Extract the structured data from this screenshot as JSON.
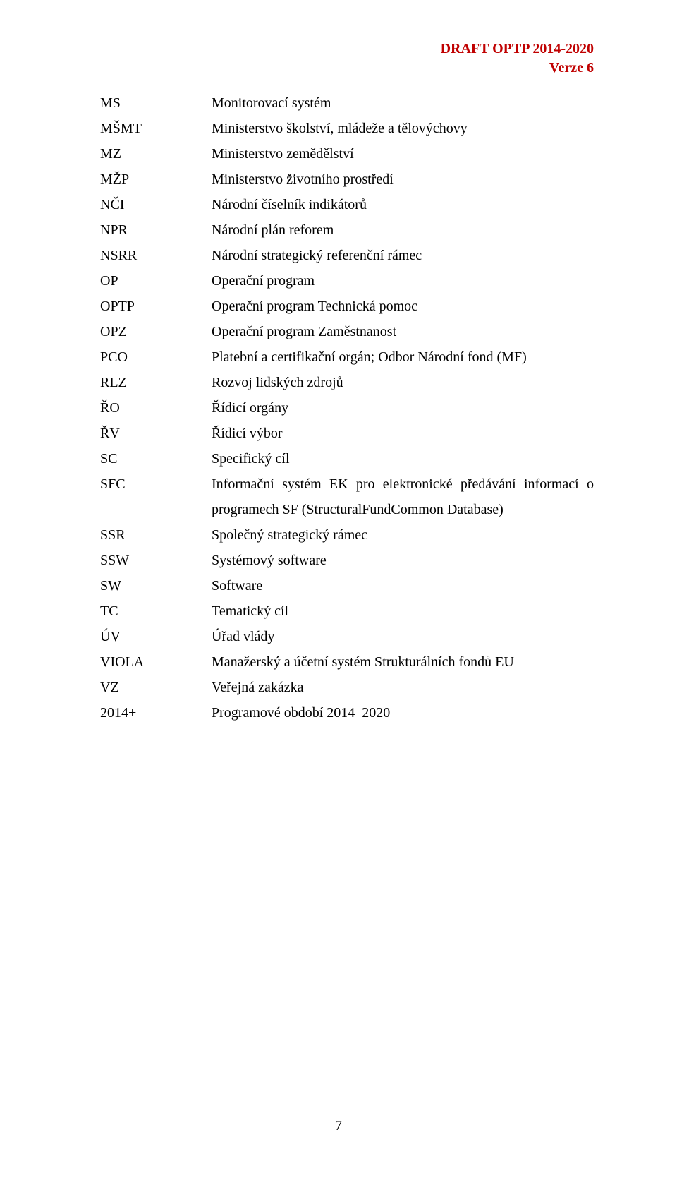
{
  "header": {
    "line1": "DRAFT OPTP 2014-2020",
    "line2": "Verze 6",
    "color": "#c00000"
  },
  "entries": [
    {
      "abbr": "MS",
      "def": "Monitorovací systém"
    },
    {
      "abbr": "MŠMT",
      "def": "Ministerstvo školství, mládeže a tělovýchovy"
    },
    {
      "abbr": "MZ",
      "def": "Ministerstvo zemědělství"
    },
    {
      "abbr": "MŽP",
      "def": "Ministerstvo životního prostředí"
    },
    {
      "abbr": "NČI",
      "def": "Národní číselník indikátorů"
    },
    {
      "abbr": "NPR",
      "def": "Národní plán reforem"
    },
    {
      "abbr": "NSRR",
      "def": "Národní strategický referenční rámec"
    },
    {
      "abbr": "OP",
      "def": "Operační program"
    },
    {
      "abbr": "OPTP",
      "def": "Operační program Technická pomoc"
    },
    {
      "abbr": "OPZ",
      "def": "Operační program Zaměstnanost"
    },
    {
      "abbr": "PCO",
      "def": "Platební a certifikační orgán; Odbor Národní fond (MF)"
    },
    {
      "abbr": "RLZ",
      "def": "Rozvoj lidských zdrojů"
    },
    {
      "abbr": "ŘO",
      "def": "Řídicí orgány"
    },
    {
      "abbr": "ŘV",
      "def": "Řídicí výbor"
    },
    {
      "abbr": "SC",
      "def": "Specifický cíl"
    },
    {
      "abbr": "SFC",
      "def": "Informační systém EK pro elektronické předávání informací o programech SF (StructuralFundCommon Database)"
    },
    {
      "abbr": "SSR",
      "def": "Společný strategický rámec"
    },
    {
      "abbr": "SSW",
      "def": "Systémový software"
    },
    {
      "abbr": "SW",
      "def": "Software"
    },
    {
      "abbr": "TC",
      "def": "Tematický cíl"
    },
    {
      "abbr": "ÚV",
      "def": "Úřad vlády"
    },
    {
      "abbr": "VIOLA",
      "def": "Manažerský a účetní systém Strukturálních fondů EU"
    },
    {
      "abbr": "VZ",
      "def": "Veřejná zakázka"
    },
    {
      "abbr": "2014+",
      "def": "Programové období 2014–2020"
    }
  ],
  "page_number": "7"
}
